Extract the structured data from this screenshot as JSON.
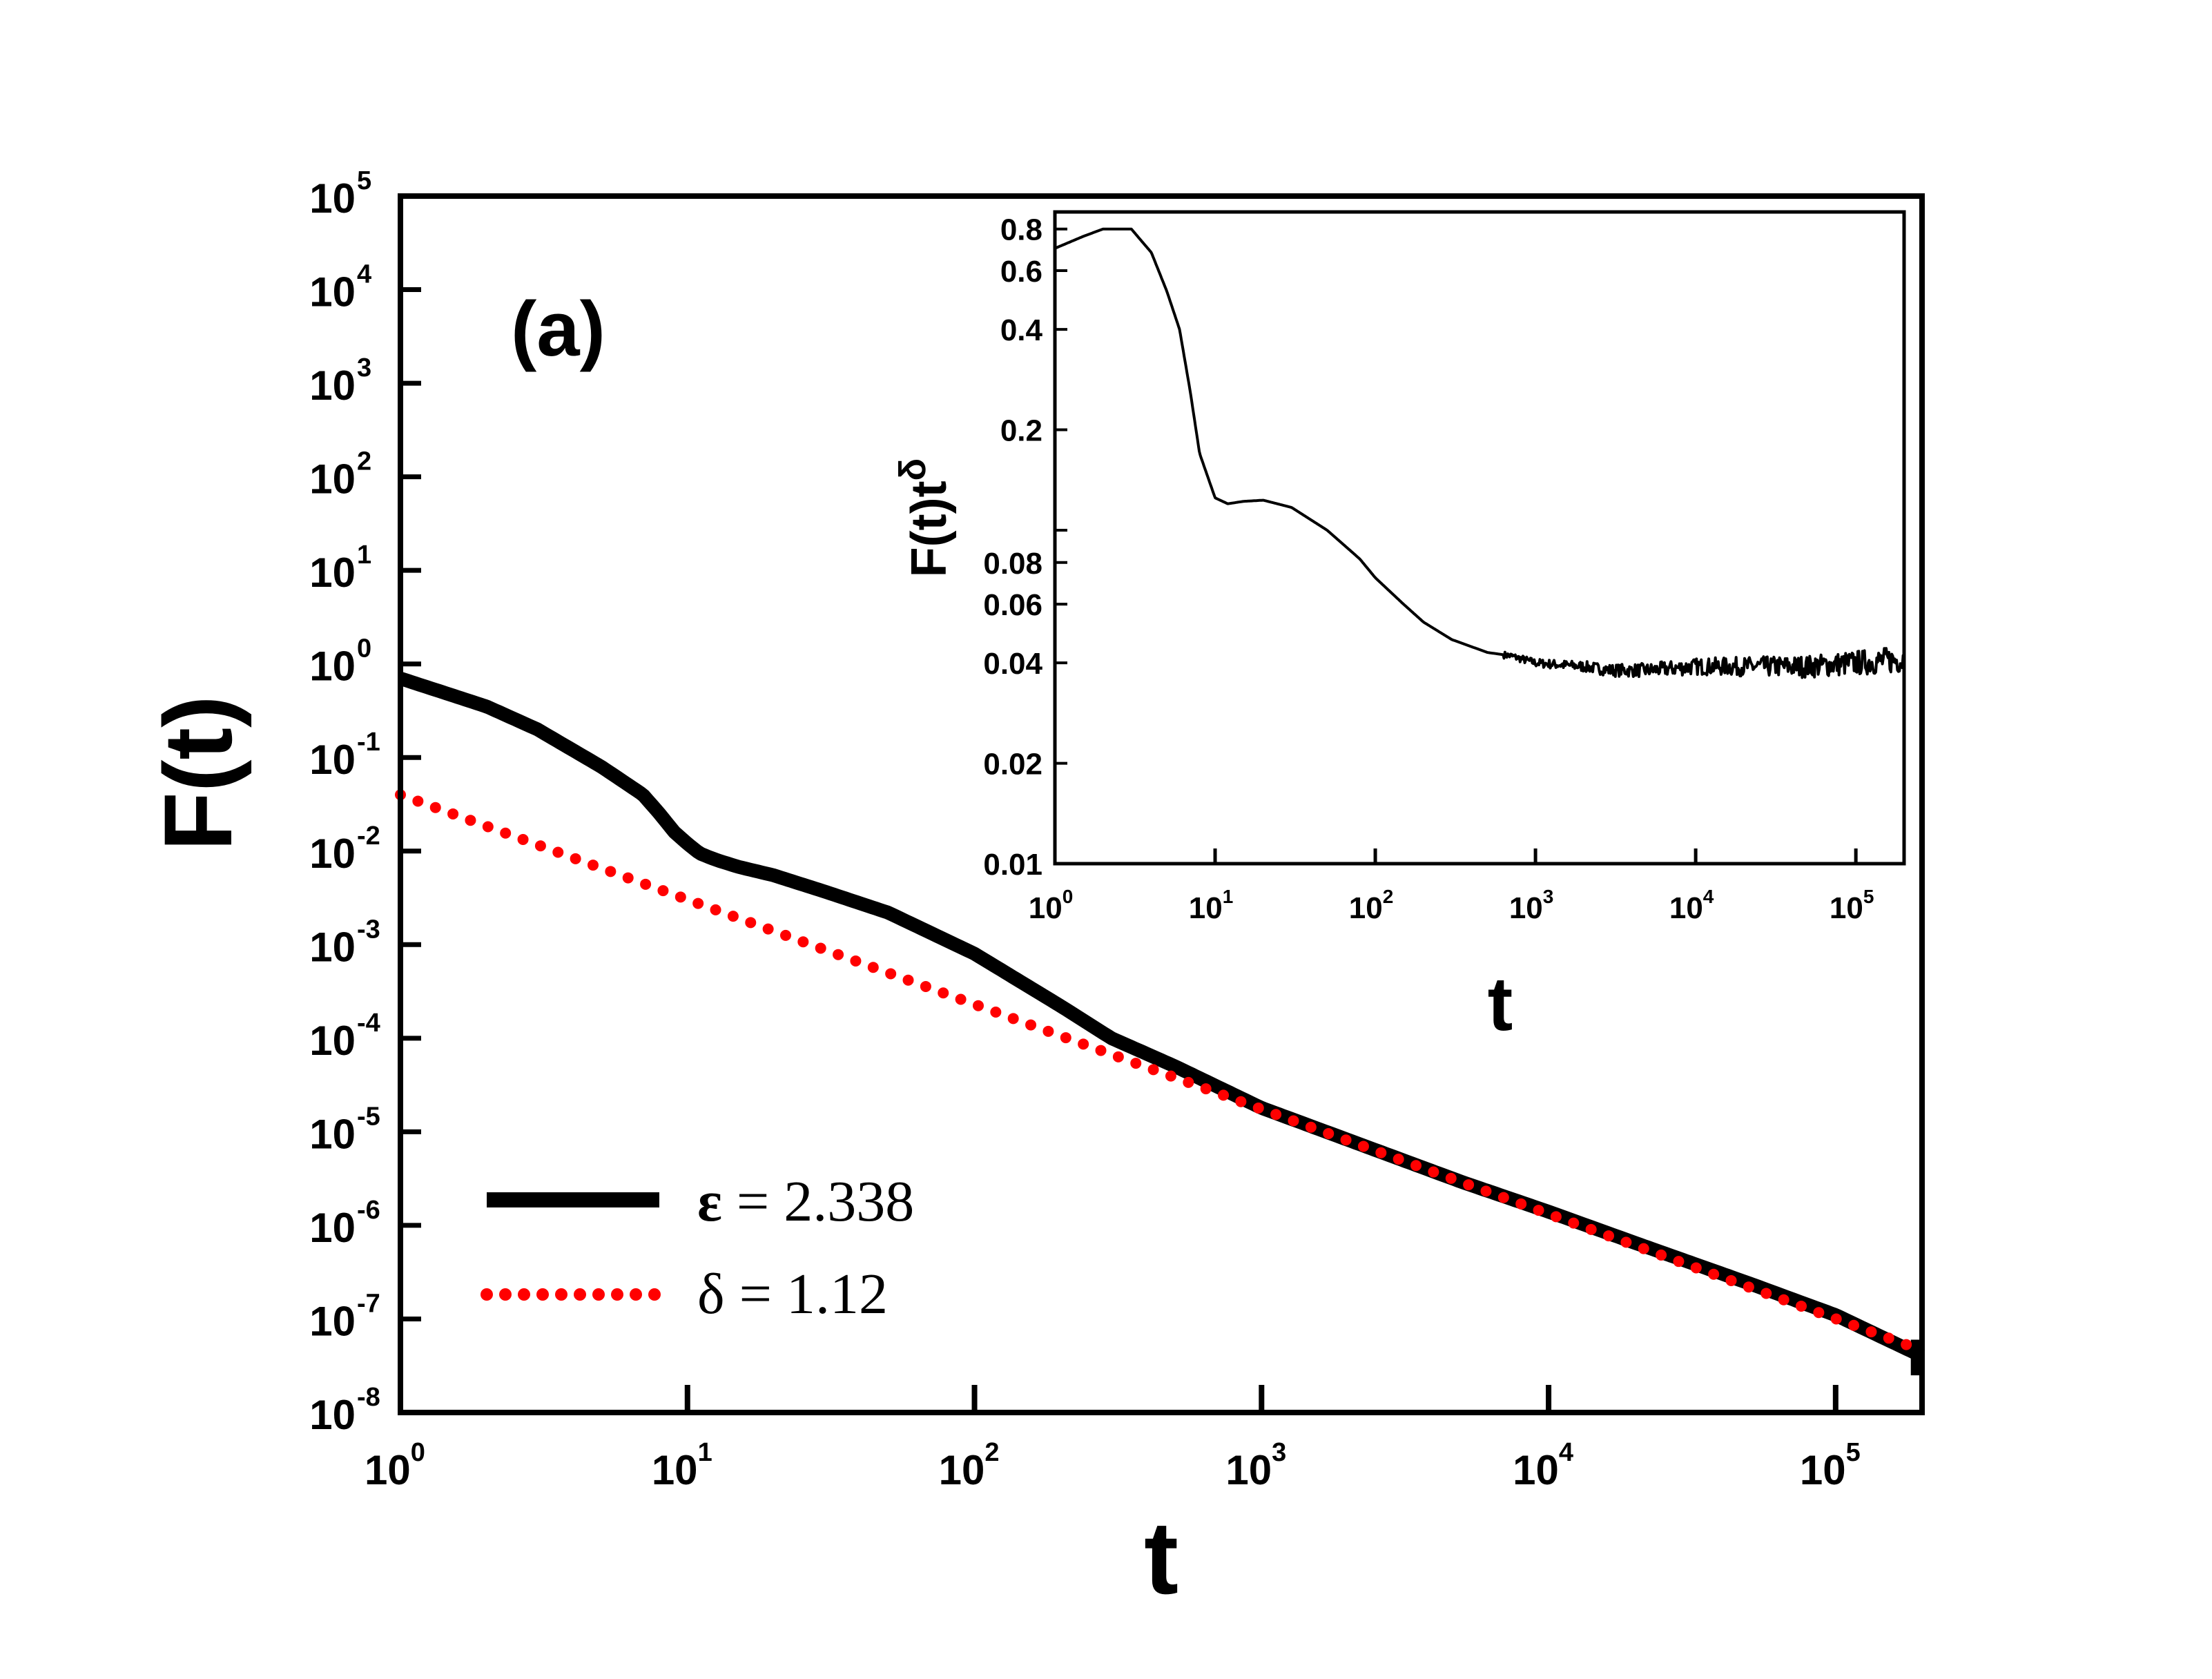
{
  "chart_data": [
    {
      "type": "line",
      "panel": "(a)",
      "xscale": "log",
      "yscale": "log",
      "xlabel": "t",
      "ylabel": "F(t)",
      "xlim": [
        1,
        200000
      ],
      "ylim": [
        1e-08,
        100000
      ],
      "x_ticks": [
        {
          "base": "10",
          "exp": "0"
        },
        {
          "base": "10",
          "exp": "1"
        },
        {
          "base": "10",
          "exp": "2"
        },
        {
          "base": "10",
          "exp": "3"
        },
        {
          "base": "10",
          "exp": "4"
        },
        {
          "base": "10",
          "exp": "5"
        }
      ],
      "y_ticks": [
        {
          "base": "10",
          "exp": "-8"
        },
        {
          "base": "10",
          "exp": "-7"
        },
        {
          "base": "10",
          "exp": "-6"
        },
        {
          "base": "10",
          "exp": "-5"
        },
        {
          "base": "10",
          "exp": "-4"
        },
        {
          "base": "10",
          "exp": "-3"
        },
        {
          "base": "10",
          "exp": "-2"
        },
        {
          "base": "10",
          "exp": "-1"
        },
        {
          "base": "10",
          "exp": "0"
        },
        {
          "base": "10",
          "exp": "1"
        },
        {
          "base": "10",
          "exp": "2"
        },
        {
          "base": "10",
          "exp": "3"
        },
        {
          "base": "10",
          "exp": "4"
        },
        {
          "base": "10",
          "exp": "5"
        }
      ],
      "legend_position": "bottom-left",
      "series": [
        {
          "name": "ε = 2.338",
          "style": "solid",
          "color": "#000000",
          "x": [
            1,
            2,
            3,
            5,
            7,
            8,
            9,
            10,
            11,
            12,
            13,
            15,
            20,
            30,
            50,
            100,
            200,
            300,
            500,
            1000,
            2000,
            5000,
            10000,
            20000,
            50000,
            100000,
            200000
          ],
          "y": [
            0.7,
            0.35,
            0.2,
            0.08,
            0.04,
            0.025,
            0.016,
            0.012,
            0.0095,
            0.0085,
            0.0078,
            0.0068,
            0.0055,
            0.0037,
            0.0022,
            0.0008,
            0.00022,
            0.0001,
            5e-05,
            1.8e-05,
            8.2e-06,
            2.9e-06,
            1.4e-06,
            6.5e-07,
            2.4e-07,
            1.1e-07,
            4e-08
          ]
        },
        {
          "name": "δ = 1.12",
          "style": "dotted",
          "color": "#ff0000",
          "exponent": -1.12,
          "prefactor": 0.04,
          "x": [
            1,
            10,
            100,
            1000,
            10000,
            100000,
            200000
          ],
          "y": [
            0.04,
            0.003,
            0.00023,
            1.75e-05,
            1.3e-06,
            1e-07,
            4.6e-08
          ]
        }
      ]
    },
    {
      "type": "line",
      "panel": "inset",
      "xscale": "log",
      "yscale": "log",
      "xlabel": "t",
      "ylabel": "F(t)t",
      "ylabel_sup": "δ",
      "xlim": [
        1,
        200000
      ],
      "ylim": [
        0.01,
        0.9
      ],
      "x_ticks": [
        {
          "base": "10",
          "exp": "0"
        },
        {
          "base": "10",
          "exp": "1"
        },
        {
          "base": "10",
          "exp": "2"
        },
        {
          "base": "10",
          "exp": "3"
        },
        {
          "base": "10",
          "exp": "4"
        },
        {
          "base": "10",
          "exp": "5"
        }
      ],
      "y_ticks": [
        "0.01",
        "0.02",
        "0.04",
        "0.06",
        "0.08",
        "0.2",
        "0.4",
        "0.6",
        "0.8"
      ],
      "series": [
        {
          "name": "F(t)t^δ",
          "style": "solid",
          "color": "#000000",
          "x": [
            1,
            1.5,
            2,
            3,
            4,
            5,
            6,
            7,
            8,
            10,
            12,
            15,
            20,
            30,
            50,
            80,
            100,
            150,
            200,
            300,
            500,
            700,
            1000,
            2000,
            3000,
            5000,
            10000,
            20000,
            50000,
            100000,
            200000
          ],
          "y": [
            0.7,
            0.76,
            0.8,
            0.8,
            0.68,
            0.52,
            0.4,
            0.26,
            0.17,
            0.125,
            0.12,
            0.122,
            0.123,
            0.117,
            0.1,
            0.082,
            0.072,
            0.06,
            0.053,
            0.047,
            0.043,
            0.042,
            0.04,
            0.039,
            0.038,
            0.038,
            0.039,
            0.039,
            0.039,
            0.04,
            0.041
          ]
        }
      ]
    }
  ],
  "panel_label": "(a)",
  "legend": [
    {
      "symbol": "ε",
      "text": " = 2.338"
    },
    {
      "symbol": "δ",
      "text": " = 1.12"
    }
  ],
  "colors": {
    "main": "#000000",
    "fit": "#ff0000",
    "background": "#ffffff"
  }
}
